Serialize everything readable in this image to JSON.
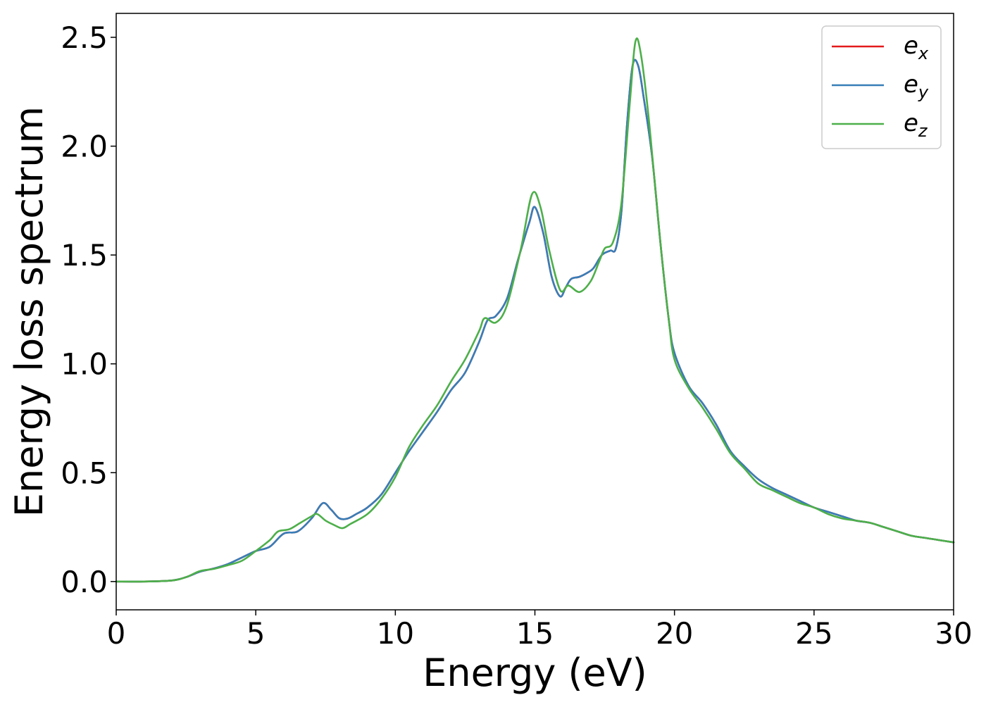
{
  "chart_data": {
    "type": "line",
    "title": "",
    "xlabel": "Energy (eV)",
    "ylabel": "Energy loss spectrum",
    "xlim": [
      0,
      30
    ],
    "ylim": [
      -0.13,
      2.61
    ],
    "xticks": [
      0,
      5,
      10,
      15,
      20,
      25,
      30
    ],
    "yticks": [
      0.0,
      0.5,
      1.0,
      1.5,
      2.0,
      2.5
    ],
    "xtick_labels": [
      "0",
      "5",
      "10",
      "15",
      "20",
      "25",
      "30"
    ],
    "ytick_labels": [
      "0.0",
      "0.5",
      "1.0",
      "1.5",
      "2.0",
      "2.5"
    ],
    "grid": false,
    "legend_position": "top-right",
    "series": [
      {
        "name": "e_x",
        "label_base": "e",
        "label_sub": "x",
        "color": "#e41a1c",
        "x": [
          0,
          1,
          2,
          2.5,
          3,
          3.5,
          4,
          4.5,
          5,
          5.5,
          6,
          6.5,
          7,
          7.4,
          7.7,
          8,
          8.3,
          8.6,
          9,
          9.5,
          10,
          10.5,
          11,
          11.5,
          12,
          12.5,
          13,
          13.3,
          13.6,
          14,
          14.4,
          14.8,
          15,
          15.3,
          15.6,
          15.9,
          16.1,
          16.3,
          16.6,
          16.9,
          17.1,
          17.4,
          17.7,
          17.9,
          18.1,
          18.3,
          18.5,
          18.7,
          18.9,
          19.2,
          19.5,
          19.8,
          20,
          20.5,
          21,
          21.5,
          22,
          22.5,
          23,
          23.5,
          24,
          24.5,
          25,
          25.5,
          26,
          26.5,
          27,
          27.5,
          28,
          28.5,
          29,
          29.5,
          30
        ],
        "values": [
          0.0,
          0.0,
          0.005,
          0.02,
          0.045,
          0.06,
          0.08,
          0.11,
          0.14,
          0.16,
          0.22,
          0.23,
          0.29,
          0.36,
          0.33,
          0.29,
          0.29,
          0.31,
          0.34,
          0.4,
          0.5,
          0.6,
          0.69,
          0.78,
          0.88,
          0.96,
          1.1,
          1.2,
          1.22,
          1.3,
          1.48,
          1.65,
          1.72,
          1.6,
          1.4,
          1.31,
          1.35,
          1.39,
          1.4,
          1.42,
          1.44,
          1.5,
          1.52,
          1.53,
          1.7,
          2.1,
          2.37,
          2.37,
          2.22,
          1.95,
          1.55,
          1.2,
          1.05,
          0.9,
          0.82,
          0.72,
          0.6,
          0.53,
          0.47,
          0.43,
          0.4,
          0.37,
          0.34,
          0.32,
          0.3,
          0.28,
          0.27,
          0.25,
          0.23,
          0.21,
          0.2,
          0.19,
          0.18
        ]
      },
      {
        "name": "e_y",
        "label_base": "e",
        "label_sub": "y",
        "color": "#377eb8",
        "x": [
          0,
          1,
          2,
          2.5,
          3,
          3.5,
          4,
          4.5,
          5,
          5.5,
          6,
          6.5,
          7,
          7.4,
          7.7,
          8,
          8.3,
          8.6,
          9,
          9.5,
          10,
          10.5,
          11,
          11.5,
          12,
          12.5,
          13,
          13.3,
          13.6,
          14,
          14.4,
          14.8,
          15,
          15.3,
          15.6,
          15.9,
          16.1,
          16.3,
          16.6,
          16.9,
          17.1,
          17.4,
          17.7,
          17.9,
          18.1,
          18.3,
          18.5,
          18.7,
          18.9,
          19.2,
          19.5,
          19.8,
          20,
          20.5,
          21,
          21.5,
          22,
          22.5,
          23,
          23.5,
          24,
          24.5,
          25,
          25.5,
          26,
          26.5,
          27,
          27.5,
          28,
          28.5,
          29,
          29.5,
          30
        ],
        "values": [
          0.0,
          0.0,
          0.005,
          0.02,
          0.045,
          0.06,
          0.08,
          0.11,
          0.14,
          0.16,
          0.22,
          0.23,
          0.29,
          0.36,
          0.33,
          0.29,
          0.29,
          0.31,
          0.34,
          0.4,
          0.5,
          0.6,
          0.69,
          0.78,
          0.88,
          0.96,
          1.1,
          1.2,
          1.22,
          1.3,
          1.48,
          1.65,
          1.72,
          1.6,
          1.4,
          1.31,
          1.35,
          1.39,
          1.4,
          1.42,
          1.44,
          1.5,
          1.52,
          1.53,
          1.7,
          2.1,
          2.37,
          2.37,
          2.22,
          1.95,
          1.55,
          1.2,
          1.05,
          0.9,
          0.82,
          0.72,
          0.6,
          0.53,
          0.47,
          0.43,
          0.4,
          0.37,
          0.34,
          0.32,
          0.3,
          0.28,
          0.27,
          0.25,
          0.23,
          0.21,
          0.2,
          0.19,
          0.18
        ]
      },
      {
        "name": "e_z",
        "label_base": "e",
        "label_sub": "z",
        "color": "#4daf4a",
        "x": [
          0,
          1,
          2,
          2.5,
          3,
          3.5,
          4,
          4.5,
          5,
          5.5,
          5.8,
          6.2,
          6.6,
          7,
          7.2,
          7.5,
          7.8,
          8.1,
          8.4,
          9,
          9.5,
          10,
          10.5,
          11,
          11.5,
          12,
          12.5,
          13,
          13.2,
          13.6,
          14,
          14.5,
          14.9,
          15.2,
          15.5,
          15.9,
          16.2,
          16.6,
          17,
          17.3,
          17.5,
          17.8,
          18.1,
          18.4,
          18.6,
          18.8,
          19.1,
          19.5,
          19.8,
          20,
          20.5,
          21,
          21.5,
          22,
          22.5,
          23,
          23.5,
          24,
          24.5,
          25,
          25.5,
          26,
          26.5,
          27,
          27.5,
          28,
          28.5,
          29,
          29.5,
          30
        ],
        "values": [
          0.0,
          0.0,
          0.005,
          0.02,
          0.048,
          0.058,
          0.075,
          0.095,
          0.14,
          0.19,
          0.23,
          0.24,
          0.27,
          0.3,
          0.31,
          0.28,
          0.26,
          0.245,
          0.265,
          0.31,
          0.38,
          0.48,
          0.62,
          0.72,
          0.81,
          0.92,
          1.02,
          1.15,
          1.21,
          1.19,
          1.27,
          1.53,
          1.78,
          1.72,
          1.53,
          1.34,
          1.36,
          1.33,
          1.38,
          1.47,
          1.53,
          1.56,
          1.74,
          2.2,
          2.48,
          2.42,
          2.1,
          1.55,
          1.2,
          1.02,
          0.89,
          0.8,
          0.7,
          0.59,
          0.52,
          0.45,
          0.42,
          0.39,
          0.36,
          0.34,
          0.31,
          0.29,
          0.28,
          0.27,
          0.25,
          0.23,
          0.21,
          0.2,
          0.19,
          0.18
        ]
      }
    ]
  }
}
